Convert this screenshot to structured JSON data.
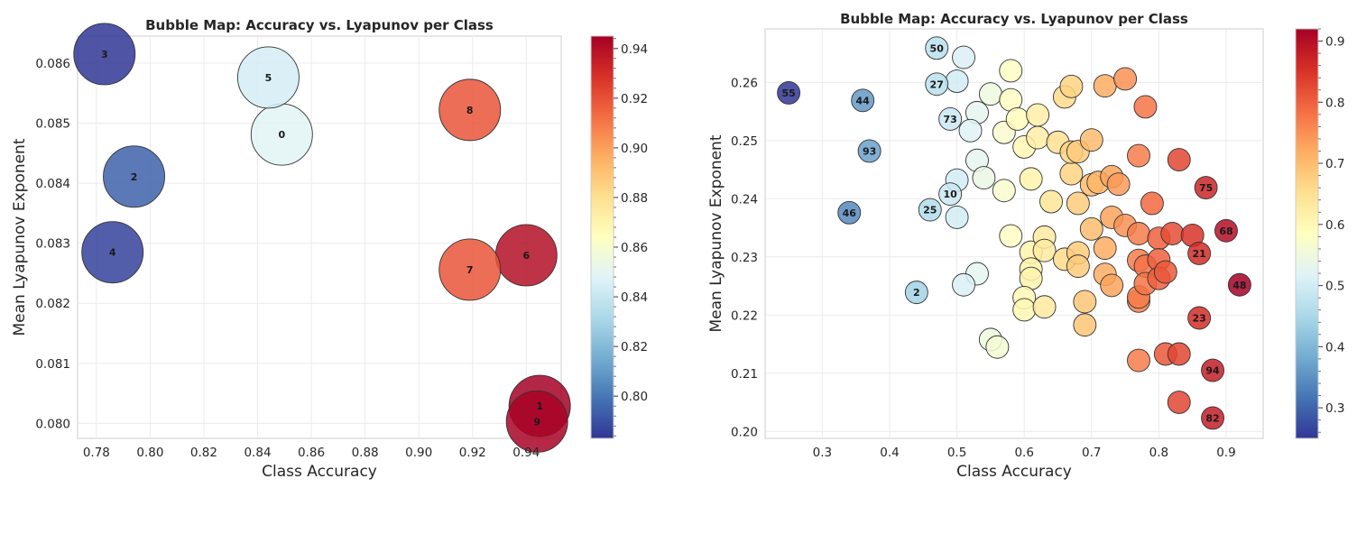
{
  "chart_data": [
    {
      "type": "scatter",
      "title": "Bubble Map: Accuracy vs. Lyapunov per Class",
      "xlabel": "Class Accuracy",
      "ylabel": "Mean Lyapunov Exponent",
      "xlim": [
        0.773,
        0.953
      ],
      "ylim": [
        0.07975,
        0.08645
      ],
      "xticks": [
        0.78,
        0.8,
        0.82,
        0.84,
        0.86,
        0.88,
        0.9,
        0.92,
        0.94
      ],
      "xtick_labels": [
        "0.78",
        "0.80",
        "0.82",
        "0.84",
        "0.86",
        "0.88",
        "0.90",
        "0.92",
        "0.94"
      ],
      "yticks": [
        0.08,
        0.081,
        0.082,
        0.083,
        0.084,
        0.085,
        0.086
      ],
      "ytick_labels": [
        "0.080",
        "0.081",
        "0.082",
        "0.083",
        "0.084",
        "0.085",
        "0.086"
      ],
      "grid": true,
      "colormap": "RdYlBu_r",
      "colorbar": {
        "min": 0.783,
        "max": 0.945,
        "ticks": [
          0.8,
          0.82,
          0.84,
          0.86,
          0.88,
          0.9,
          0.92,
          0.94
        ],
        "tick_labels": [
          "0.80",
          "0.82",
          "0.84",
          "0.86",
          "0.88",
          "0.90",
          "0.92",
          "0.94"
        ]
      },
      "points": [
        {
          "label": "0",
          "x": 0.849,
          "y": 0.08481,
          "color_value": 0.849
        },
        {
          "label": "1",
          "x": 0.945,
          "y": 0.08029,
          "color_value": 0.945
        },
        {
          "label": "2",
          "x": 0.794,
          "y": 0.08411,
          "color_value": 0.794
        },
        {
          "label": "3",
          "x": 0.783,
          "y": 0.08615,
          "color_value": 0.783
        },
        {
          "label": "4",
          "x": 0.786,
          "y": 0.08285,
          "color_value": 0.786
        },
        {
          "label": "5",
          "x": 0.844,
          "y": 0.08576,
          "color_value": 0.844
        },
        {
          "label": "6",
          "x": 0.94,
          "y": 0.0828,
          "color_value": 0.94
        },
        {
          "label": "7",
          "x": 0.919,
          "y": 0.08256,
          "color_value": 0.919
        },
        {
          "label": "8",
          "x": 0.919,
          "y": 0.08522,
          "color_value": 0.919
        },
        {
          "label": "9",
          "x": 0.944,
          "y": 0.08003,
          "color_value": 0.944
        }
      ]
    },
    {
      "type": "scatter",
      "title": "Bubble Map: Accuracy vs. Lyapunov per Class",
      "xlabel": "Class Accuracy",
      "ylabel": "Mean Lyapunov Exponent",
      "xlim": [
        0.215,
        0.955
      ],
      "ylim": [
        0.1988,
        0.2692
      ],
      "xticks": [
        0.3,
        0.4,
        0.5,
        0.6,
        0.7,
        0.8,
        0.9
      ],
      "xtick_labels": [
        "0.3",
        "0.4",
        "0.5",
        "0.6",
        "0.7",
        "0.8",
        "0.9"
      ],
      "yticks": [
        0.2,
        0.21,
        0.22,
        0.23,
        0.24,
        0.25,
        0.26
      ],
      "ytick_labels": [
        "0.20",
        "0.21",
        "0.22",
        "0.23",
        "0.24",
        "0.25",
        "0.26"
      ],
      "grid": true,
      "colormap": "RdYlBu_r",
      "colorbar": {
        "min": 0.25,
        "max": 0.92,
        "ticks": [
          0.3,
          0.4,
          0.5,
          0.6,
          0.7,
          0.8,
          0.9
        ],
        "tick_labels": [
          "0.3",
          "0.4",
          "0.5",
          "0.6",
          "0.7",
          "0.8",
          "0.9"
        ]
      },
      "labeled_points": [
        {
          "label": "55",
          "x": 0.25,
          "y": 0.2582
        },
        {
          "label": "44",
          "x": 0.36,
          "y": 0.2569
        },
        {
          "label": "93",
          "x": 0.37,
          "y": 0.2482
        },
        {
          "label": "46",
          "x": 0.34,
          "y": 0.2376
        },
        {
          "label": "50",
          "x": 0.47,
          "y": 0.2659
        },
        {
          "label": "27",
          "x": 0.47,
          "y": 0.2597
        },
        {
          "label": "73",
          "x": 0.49,
          "y": 0.2537
        },
        {
          "label": "10",
          "x": 0.49,
          "y": 0.2408
        },
        {
          "label": "25",
          "x": 0.46,
          "y": 0.2381
        },
        {
          "label": "2",
          "x": 0.44,
          "y": 0.2239
        },
        {
          "label": "75",
          "x": 0.87,
          "y": 0.2419
        },
        {
          "label": "68",
          "x": 0.9,
          "y": 0.2345
        },
        {
          "label": "21",
          "x": 0.86,
          "y": 0.2306
        },
        {
          "label": "48",
          "x": 0.92,
          "y": 0.2252
        },
        {
          "label": "23",
          "x": 0.86,
          "y": 0.2195
        },
        {
          "label": "94",
          "x": 0.88,
          "y": 0.2105
        },
        {
          "label": "82",
          "x": 0.88,
          "y": 0.2023
        }
      ],
      "unlabeled_points": [
        [
          0.51,
          0.2643
        ],
        [
          0.5,
          0.2602
        ],
        [
          0.58,
          0.262
        ],
        [
          0.55,
          0.258
        ],
        [
          0.58,
          0.257
        ],
        [
          0.53,
          0.2548
        ],
        [
          0.52,
          0.2517
        ],
        [
          0.57,
          0.2514
        ],
        [
          0.59,
          0.2537
        ],
        [
          0.62,
          0.2544
        ],
        [
          0.6,
          0.2489
        ],
        [
          0.62,
          0.2505
        ],
        [
          0.65,
          0.2497
        ],
        [
          0.66,
          0.2575
        ],
        [
          0.67,
          0.2593
        ],
        [
          0.72,
          0.2594
        ],
        [
          0.75,
          0.2606
        ],
        [
          0.78,
          0.2558
        ],
        [
          0.53,
          0.2466
        ],
        [
          0.5,
          0.2432
        ],
        [
          0.54,
          0.2436
        ],
        [
          0.57,
          0.2414
        ],
        [
          0.61,
          0.2434
        ],
        [
          0.5,
          0.2368
        ],
        [
          0.64,
          0.2395
        ],
        [
          0.67,
          0.2443
        ],
        [
          0.67,
          0.248
        ],
        [
          0.68,
          0.2481
        ],
        [
          0.7,
          0.2501
        ],
        [
          0.77,
          0.2474
        ],
        [
          0.83,
          0.2467
        ],
        [
          0.68,
          0.2392
        ],
        [
          0.7,
          0.2424
        ],
        [
          0.71,
          0.2428
        ],
        [
          0.73,
          0.2438
        ],
        [
          0.74,
          0.2425
        ],
        [
          0.79,
          0.2392
        ],
        [
          0.58,
          0.2336
        ],
        [
          0.61,
          0.2308
        ],
        [
          0.63,
          0.2334
        ],
        [
          0.63,
          0.2311
        ],
        [
          0.61,
          0.2279
        ],
        [
          0.61,
          0.2263
        ],
        [
          0.66,
          0.2296
        ],
        [
          0.68,
          0.2307
        ],
        [
          0.68,
          0.2284
        ],
        [
          0.7,
          0.2348
        ],
        [
          0.72,
          0.2315
        ],
        [
          0.73,
          0.2368
        ],
        [
          0.75,
          0.2354
        ],
        [
          0.77,
          0.234
        ],
        [
          0.8,
          0.2332
        ],
        [
          0.82,
          0.234
        ],
        [
          0.85,
          0.2337
        ],
        [
          0.53,
          0.2271
        ],
        [
          0.51,
          0.2252
        ],
        [
          0.6,
          0.223
        ],
        [
          0.6,
          0.2209
        ],
        [
          0.63,
          0.2214
        ],
        [
          0.69,
          0.2223
        ],
        [
          0.69,
          0.2183
        ],
        [
          0.72,
          0.227
        ],
        [
          0.73,
          0.2251
        ],
        [
          0.77,
          0.2294
        ],
        [
          0.78,
          0.2284
        ],
        [
          0.8,
          0.2295
        ],
        [
          0.77,
          0.2224
        ],
        [
          0.77,
          0.2231
        ],
        [
          0.78,
          0.2254
        ],
        [
          0.8,
          0.2263
        ],
        [
          0.81,
          0.2274
        ],
        [
          0.55,
          0.2158
        ],
        [
          0.56,
          0.2145
        ],
        [
          0.77,
          0.2122
        ],
        [
          0.81,
          0.2133
        ],
        [
          0.83,
          0.2133
        ],
        [
          0.83,
          0.205
        ]
      ]
    }
  ]
}
